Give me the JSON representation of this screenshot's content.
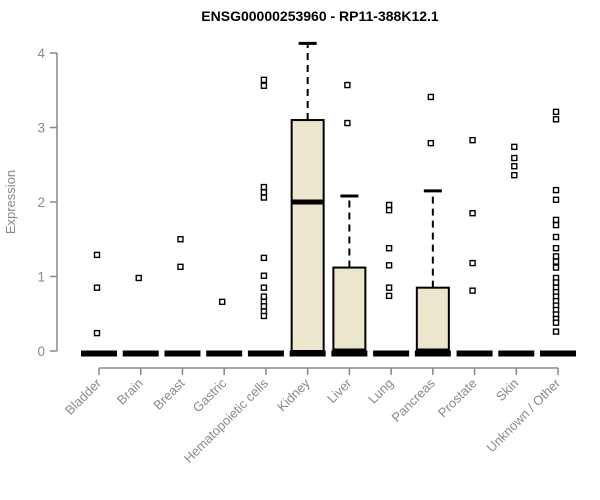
{
  "chart_data": {
    "type": "boxplot",
    "title": "ENSG00000253960 - RP11-388K12.1",
    "y_axis": {
      "label": "Expression",
      "ticks": [
        0,
        1,
        2,
        3,
        4
      ],
      "range": [
        0,
        4.2
      ]
    },
    "categories": [
      "Bladder",
      "Brain",
      "Breast",
      "Gastric",
      "Hematopoietic cells",
      "Kidney",
      "Liver",
      "Lung",
      "Pancreas",
      "Prostate",
      "Skin",
      "Unknown / Other"
    ],
    "series": [
      {
        "category": "Bladder",
        "q1": 0,
        "median": 0,
        "q3": 0,
        "whisker_high": 0,
        "points": [
          1.29,
          0.85,
          0.24
        ]
      },
      {
        "category": "Brain",
        "q1": 0,
        "median": 0,
        "q3": 0,
        "whisker_high": 0,
        "points": [
          0.98
        ]
      },
      {
        "category": "Breast",
        "q1": 0,
        "median": 0,
        "q3": 0,
        "whisker_high": 0,
        "points": [
          1.5,
          1.13
        ]
      },
      {
        "category": "Gastric",
        "q1": 0,
        "median": 0,
        "q3": 0,
        "whisker_high": 0,
        "points": [
          0.66
        ]
      },
      {
        "category": "Hematopoietic cells",
        "q1": 0,
        "median": 0,
        "q3": 0,
        "whisker_high": 0,
        "points": [
          3.64,
          3.56,
          2.2,
          2.13,
          2.06,
          1.25,
          1.01,
          0.85,
          0.73,
          0.66,
          0.6,
          0.53,
          0.47
        ]
      },
      {
        "category": "Kidney",
        "q1": 0,
        "median": 2.0,
        "q3": 3.1,
        "whisker_high": 4.13,
        "points": []
      },
      {
        "category": "Liver",
        "q1": 0,
        "median": 0,
        "q3": 1.12,
        "whisker_high": 2.08,
        "points": [
          3.57,
          3.06
        ]
      },
      {
        "category": "Lung",
        "q1": 0,
        "median": 0,
        "q3": 0,
        "whisker_high": 0,
        "points": [
          1.96,
          1.89,
          1.38,
          1.15,
          0.85,
          0.74
        ]
      },
      {
        "category": "Pancreas",
        "q1": 0,
        "median": 0,
        "q3": 0.85,
        "whisker_high": 2.15,
        "points": [
          3.41,
          2.79
        ]
      },
      {
        "category": "Prostate",
        "q1": 0,
        "median": 0,
        "q3": 0,
        "whisker_high": 0,
        "points": [
          2.83,
          1.85,
          1.18,
          0.81
        ]
      },
      {
        "category": "Skin",
        "q1": 0,
        "median": 0,
        "q3": 0,
        "whisker_high": 0,
        "points": [
          2.74,
          2.59,
          2.48,
          2.36
        ]
      },
      {
        "category": "Unknown / Other",
        "q1": 0,
        "median": 0,
        "q3": 0,
        "whisker_high": 0,
        "points": [
          3.21,
          3.11,
          2.16,
          2.03,
          1.76,
          1.69,
          1.53,
          1.38,
          1.27,
          1.2,
          1.12,
          0.98,
          0.92,
          0.85,
          0.79,
          0.73,
          0.67,
          0.61,
          0.55,
          0.49,
          0.43,
          0.38,
          0.26
        ]
      }
    ],
    "colors": {
      "box_fill": "#ece6cd",
      "box_border": "#000000",
      "axis": "#888888",
      "tick_label": "#8a8a8a",
      "title": "#000000",
      "background": "#ffffff"
    }
  }
}
